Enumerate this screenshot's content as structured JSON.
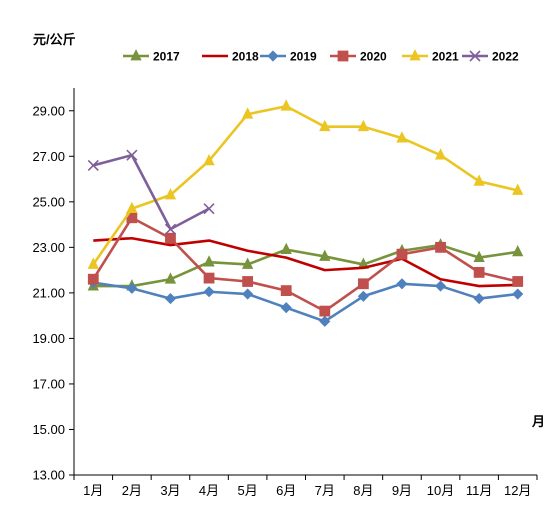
{
  "chart_data": {
    "type": "line",
    "title": "",
    "ylabel": "元/公斤",
    "xlabel": "月",
    "ylim": [
      13.0,
      30.0
    ],
    "yticks": [
      "29.00",
      "27.00",
      "25.00",
      "23.00",
      "21.00",
      "19.00",
      "17.00",
      "15.00",
      "13.00"
    ],
    "categories": [
      "1月",
      "2月",
      "3月",
      "4月",
      "5月",
      "6月",
      "7月",
      "8月",
      "9月",
      "10月",
      "11月",
      "12月"
    ],
    "grid": false,
    "legend_position": "top",
    "series": [
      {
        "name": "2017",
        "color": "#77933C",
        "marker": "triangle",
        "values": [
          21.3,
          21.3,
          21.6,
          22.35,
          22.25,
          22.9,
          22.6,
          22.25,
          22.85,
          23.1,
          22.55,
          22.8
        ]
      },
      {
        "name": "2018",
        "color": "#C00000",
        "marker": "none",
        "values": [
          23.3,
          23.4,
          23.1,
          23.3,
          22.85,
          22.55,
          22.0,
          22.1,
          22.5,
          21.6,
          21.3,
          21.35
        ]
      },
      {
        "name": "2019",
        "color": "#4F81BD",
        "marker": "diamond",
        "values": [
          21.45,
          21.2,
          20.75,
          21.05,
          20.95,
          20.35,
          19.75,
          20.85,
          21.4,
          21.3,
          20.75,
          20.95
        ]
      },
      {
        "name": "2020",
        "color": "#C0504D",
        "marker": "square",
        "values": [
          21.6,
          24.3,
          23.4,
          21.65,
          21.5,
          21.1,
          20.2,
          21.4,
          22.7,
          23.0,
          21.9,
          21.5
        ]
      },
      {
        "name": "2021",
        "color": "#EBC622",
        "marker": "triangle",
        "values": [
          22.25,
          24.7,
          25.3,
          26.8,
          28.85,
          29.2,
          28.3,
          28.3,
          27.8,
          27.05,
          25.9,
          25.5
        ]
      },
      {
        "name": "2022",
        "color": "#7F5F99",
        "marker": "cross",
        "values": [
          26.6,
          27.05,
          23.8,
          24.7,
          null,
          null,
          null,
          null,
          null,
          null,
          null,
          null
        ]
      }
    ]
  }
}
